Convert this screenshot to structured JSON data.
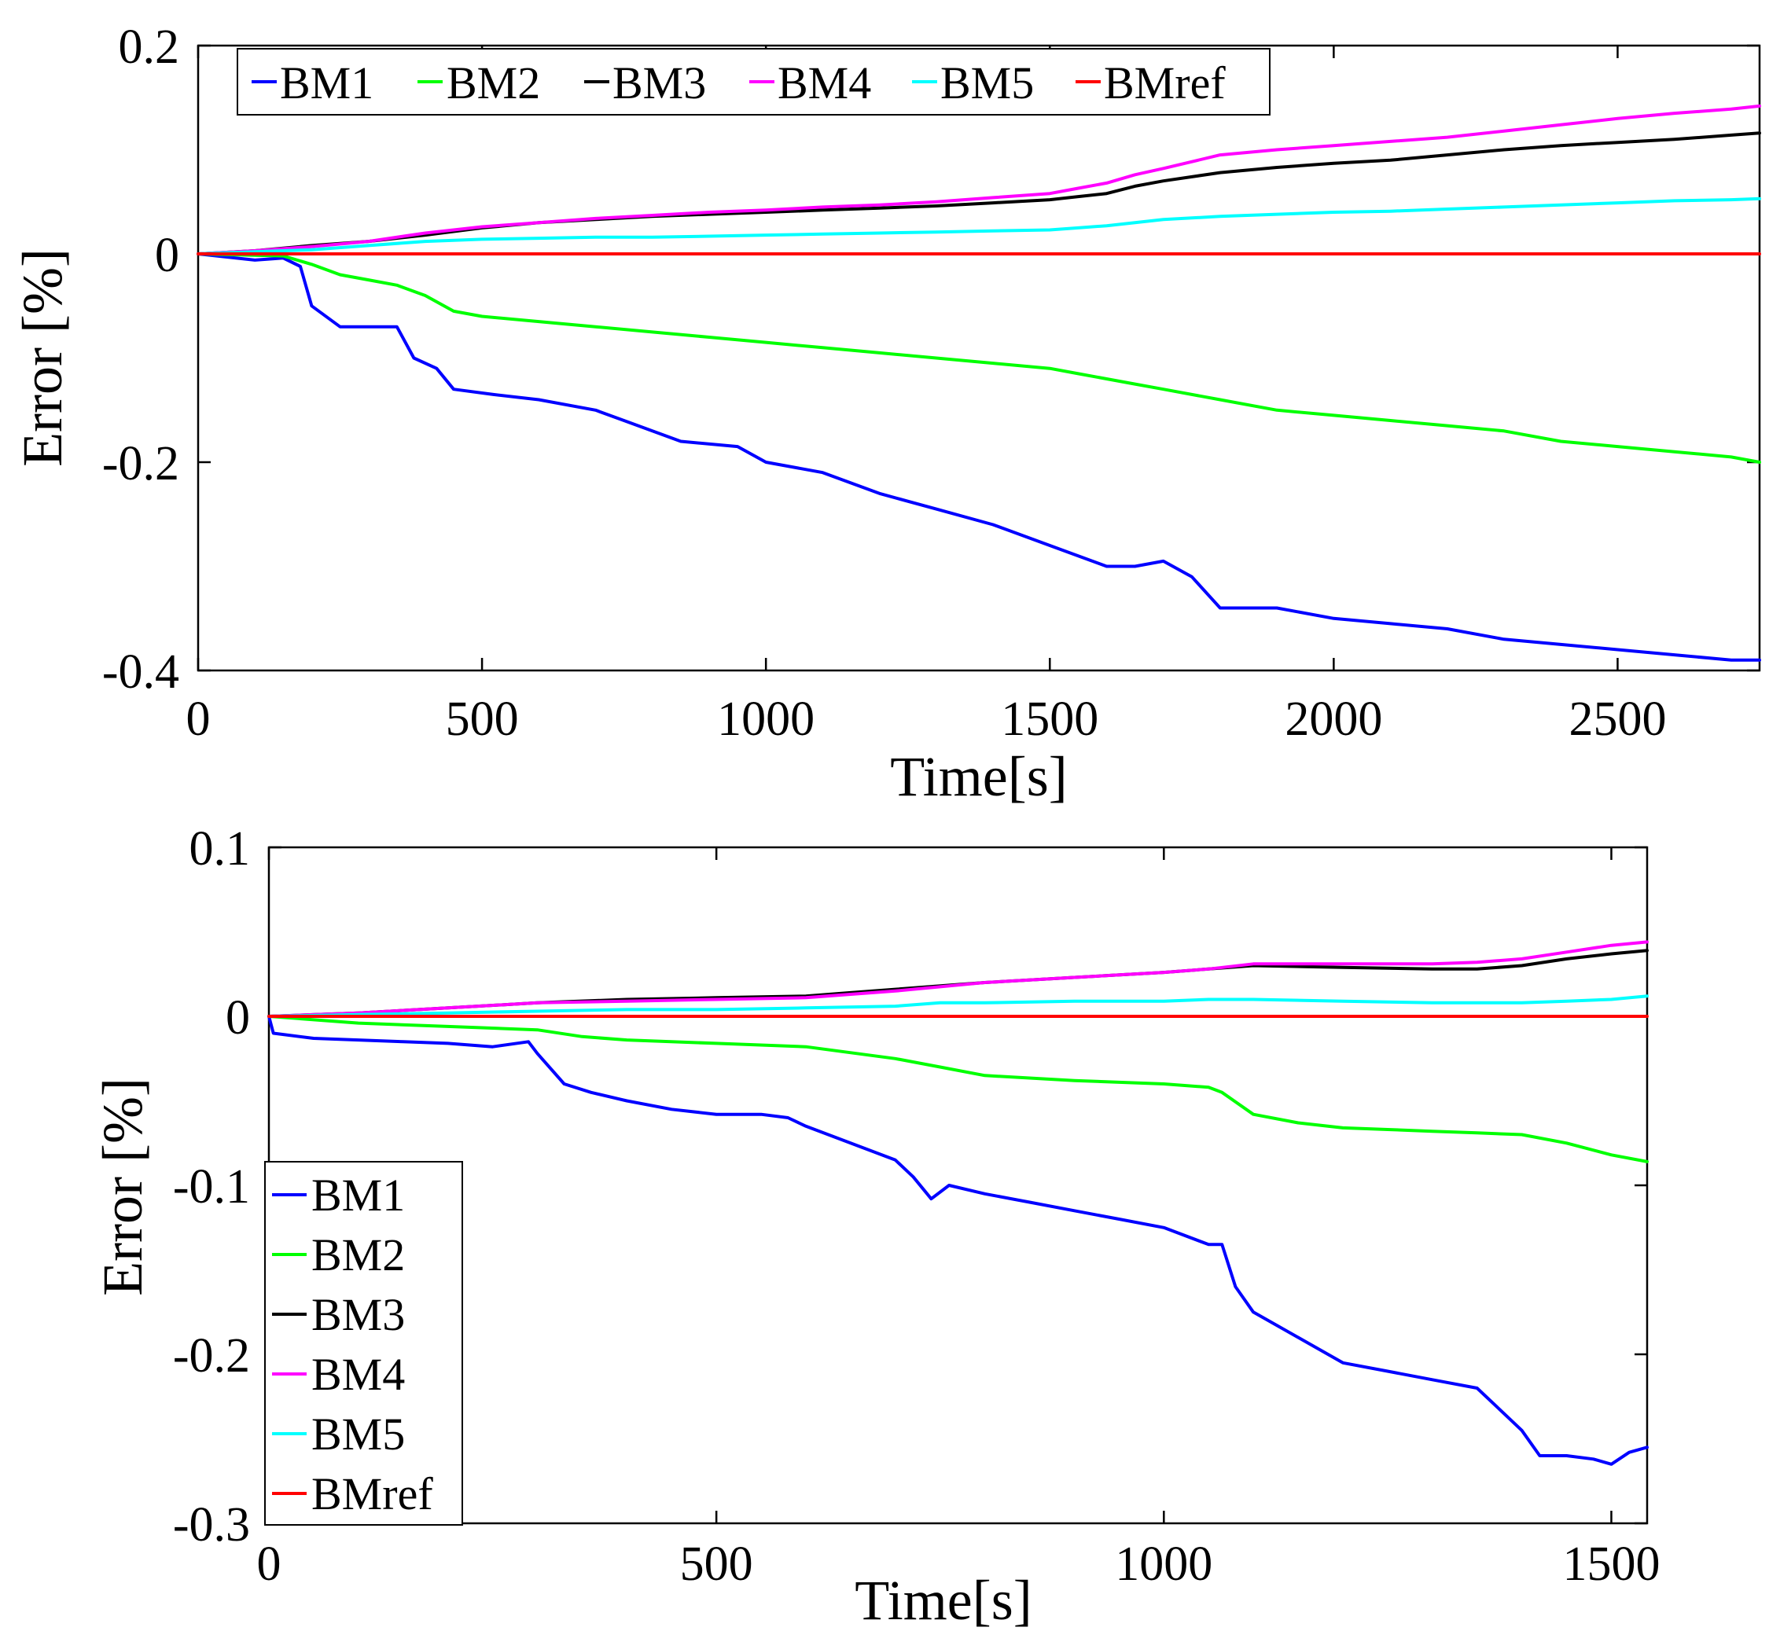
{
  "chart_data": [
    {
      "type": "line",
      "title": "",
      "xlabel": "Time[s]",
      "ylabel": "Error [%]",
      "xlim": [
        0,
        2750
      ],
      "ylim": [
        -0.4,
        0.2
      ],
      "xticks": [
        0,
        500,
        1000,
        1500,
        2000,
        2500
      ],
      "yticks": [
        0.2,
        0,
        -0.2,
        -0.4
      ],
      "xtick_labels": [
        "0",
        "500",
        "1000",
        "1500",
        "2000",
        "2500"
      ],
      "ytick_labels": [
        "0.2",
        "0",
        "-0.2",
        "-0.4"
      ],
      "legend_placement": "top-left, horizontal",
      "series": [
        {
          "name": "BM1",
          "color": "#0000ff",
          "x": [
            0,
            100,
            150,
            180,
            200,
            250,
            300,
            350,
            380,
            420,
            450,
            520,
            600,
            700,
            750,
            850,
            950,
            1000,
            1100,
            1200,
            1300,
            1400,
            1500,
            1550,
            1600,
            1650,
            1700,
            1750,
            1800,
            1900,
            2000,
            2100,
            2200,
            2300,
            2400,
            2500,
            2600,
            2700,
            2750
          ],
          "y": [
            0,
            -0.006,
            -0.004,
            -0.012,
            -0.05,
            -0.07,
            -0.07,
            -0.07,
            -0.1,
            -0.11,
            -0.13,
            -0.135,
            -0.14,
            -0.15,
            -0.16,
            -0.18,
            -0.185,
            -0.2,
            -0.21,
            -0.23,
            -0.245,
            -0.26,
            -0.28,
            -0.29,
            -0.3,
            -0.3,
            -0.295,
            -0.31,
            -0.34,
            -0.34,
            -0.35,
            -0.355,
            -0.36,
            -0.37,
            -0.375,
            -0.38,
            -0.385,
            -0.39,
            -0.39
          ]
        },
        {
          "name": "BM2",
          "color": "#00ff00",
          "x": [
            0,
            150,
            200,
            250,
            300,
            350,
            400,
            450,
            500,
            600,
            700,
            800,
            900,
            1000,
            1100,
            1200,
            1300,
            1400,
            1500,
            1550,
            1600,
            1650,
            1700,
            1800,
            1900,
            2000,
            2100,
            2200,
            2300,
            2400,
            2500,
            2600,
            2700,
            2750
          ],
          "y": [
            0,
            -0.002,
            -0.01,
            -0.02,
            -0.025,
            -0.03,
            -0.04,
            -0.055,
            -0.06,
            -0.065,
            -0.07,
            -0.075,
            -0.08,
            -0.085,
            -0.09,
            -0.095,
            -0.1,
            -0.105,
            -0.11,
            -0.115,
            -0.12,
            -0.125,
            -0.13,
            -0.14,
            -0.15,
            -0.155,
            -0.16,
            -0.165,
            -0.17,
            -0.18,
            -0.185,
            -0.19,
            -0.195,
            -0.2
          ]
        },
        {
          "name": "BM3",
          "color": "#000000",
          "x": [
            0,
            100,
            200,
            300,
            400,
            500,
            600,
            700,
            800,
            900,
            1000,
            1100,
            1200,
            1300,
            1400,
            1500,
            1550,
            1600,
            1650,
            1700,
            1800,
            1900,
            2000,
            2100,
            2200,
            2300,
            2400,
            2500,
            2600,
            2700,
            2750
          ],
          "y": [
            0,
            0.003,
            0.008,
            0.012,
            0.018,
            0.025,
            0.03,
            0.033,
            0.036,
            0.038,
            0.04,
            0.042,
            0.044,
            0.046,
            0.049,
            0.052,
            0.055,
            0.058,
            0.065,
            0.07,
            0.078,
            0.083,
            0.087,
            0.09,
            0.095,
            0.1,
            0.104,
            0.107,
            0.11,
            0.114,
            0.116
          ]
        },
        {
          "name": "BM4",
          "color": "#ff00ff",
          "x": [
            0,
            100,
            200,
            300,
            400,
            500,
            600,
            700,
            800,
            900,
            1000,
            1100,
            1200,
            1300,
            1400,
            1500,
            1550,
            1600,
            1650,
            1700,
            1800,
            1900,
            2000,
            2100,
            2200,
            2300,
            2400,
            2500,
            2600,
            2700,
            2750
          ],
          "y": [
            0,
            0.003,
            0.007,
            0.012,
            0.02,
            0.026,
            0.03,
            0.034,
            0.037,
            0.04,
            0.042,
            0.045,
            0.047,
            0.05,
            0.054,
            0.058,
            0.063,
            0.068,
            0.076,
            0.082,
            0.095,
            0.1,
            0.104,
            0.108,
            0.112,
            0.118,
            0.124,
            0.13,
            0.135,
            0.139,
            0.142
          ]
        },
        {
          "name": "BM5",
          "color": "#00ffff",
          "x": [
            0,
            100,
            200,
            300,
            400,
            500,
            600,
            700,
            800,
            900,
            1000,
            1100,
            1200,
            1300,
            1400,
            1500,
            1550,
            1600,
            1650,
            1700,
            1800,
            1900,
            2000,
            2100,
            2200,
            2300,
            2400,
            2500,
            2600,
            2700,
            2750
          ],
          "y": [
            0,
            0.002,
            0.004,
            0.008,
            0.012,
            0.014,
            0.015,
            0.016,
            0.016,
            0.017,
            0.018,
            0.019,
            0.02,
            0.021,
            0.022,
            0.023,
            0.025,
            0.027,
            0.03,
            0.033,
            0.036,
            0.038,
            0.04,
            0.041,
            0.043,
            0.045,
            0.047,
            0.049,
            0.051,
            0.052,
            0.053
          ]
        },
        {
          "name": "BMref",
          "color": "#ff0000",
          "x": [
            0,
            2750
          ],
          "y": [
            0,
            0
          ]
        }
      ]
    },
    {
      "type": "line",
      "title": "",
      "xlabel": "Time[s]",
      "ylabel": "Error [%]",
      "xlim": [
        0,
        1540
      ],
      "ylim": [
        -0.3,
        0.1
      ],
      "xticks": [
        0,
        500,
        1000,
        1500
      ],
      "yticks": [
        0.1,
        0,
        -0.1,
        -0.2,
        -0.3
      ],
      "xtick_labels": [
        "0",
        "500",
        "1000",
        "1500"
      ],
      "ytick_labels": [
        "0.1",
        "0",
        "-0.1",
        "-0.2",
        "-0.3"
      ],
      "legend_placement": "bottom-left, vertical",
      "series": [
        {
          "name": "BM1",
          "color": "#0000ff",
          "x": [
            0,
            5,
            50,
            100,
            150,
            200,
            250,
            290,
            300,
            330,
            360,
            400,
            450,
            500,
            550,
            580,
            600,
            650,
            700,
            720,
            740,
            760,
            800,
            850,
            900,
            950,
            1000,
            1050,
            1065,
            1080,
            1100,
            1150,
            1200,
            1250,
            1300,
            1350,
            1380,
            1400,
            1420,
            1450,
            1480,
            1500,
            1520,
            1540
          ],
          "y": [
            0,
            -0.01,
            -0.013,
            -0.014,
            -0.015,
            -0.016,
            -0.018,
            -0.015,
            -0.022,
            -0.04,
            -0.045,
            -0.05,
            -0.055,
            -0.058,
            -0.058,
            -0.06,
            -0.065,
            -0.075,
            -0.085,
            -0.095,
            -0.108,
            -0.1,
            -0.105,
            -0.11,
            -0.115,
            -0.12,
            -0.125,
            -0.135,
            -0.135,
            -0.16,
            -0.175,
            -0.19,
            -0.205,
            -0.21,
            -0.215,
            -0.22,
            -0.235,
            -0.245,
            -0.26,
            -0.26,
            -0.262,
            -0.265,
            -0.258,
            -0.255
          ]
        },
        {
          "name": "BM2",
          "color": "#00ff00",
          "x": [
            0,
            100,
            200,
            300,
            350,
            400,
            500,
            600,
            700,
            750,
            800,
            900,
            1000,
            1050,
            1065,
            1100,
            1150,
            1200,
            1250,
            1300,
            1350,
            1400,
            1450,
            1500,
            1540
          ],
          "y": [
            0,
            -0.004,
            -0.006,
            -0.008,
            -0.012,
            -0.014,
            -0.016,
            -0.018,
            -0.025,
            -0.03,
            -0.035,
            -0.038,
            -0.04,
            -0.042,
            -0.045,
            -0.058,
            -0.063,
            -0.066,
            -0.067,
            -0.068,
            -0.069,
            -0.07,
            -0.075,
            -0.082,
            -0.086
          ]
        },
        {
          "name": "BM3",
          "color": "#000000",
          "x": [
            0,
            100,
            200,
            300,
            400,
            500,
            600,
            650,
            700,
            800,
            900,
            1000,
            1050,
            1100,
            1200,
            1300,
            1350,
            1400,
            1450,
            1500,
            1540
          ],
          "y": [
            0,
            0.002,
            0.005,
            0.008,
            0.01,
            0.011,
            0.012,
            0.014,
            0.016,
            0.02,
            0.023,
            0.026,
            0.028,
            0.03,
            0.029,
            0.028,
            0.028,
            0.03,
            0.034,
            0.037,
            0.039
          ]
        },
        {
          "name": "BM4",
          "color": "#ff00ff",
          "x": [
            0,
            100,
            200,
            300,
            400,
            500,
            600,
            650,
            700,
            800,
            900,
            1000,
            1050,
            1100,
            1200,
            1300,
            1350,
            1400,
            1450,
            1500,
            1540
          ],
          "y": [
            0,
            0.002,
            0.005,
            0.008,
            0.009,
            0.01,
            0.011,
            0.013,
            0.015,
            0.02,
            0.023,
            0.026,
            0.028,
            0.031,
            0.031,
            0.031,
            0.032,
            0.034,
            0.038,
            0.042,
            0.044
          ]
        },
        {
          "name": "BM5",
          "color": "#00ffff",
          "x": [
            0,
            100,
            200,
            300,
            400,
            500,
            600,
            700,
            750,
            800,
            900,
            1000,
            1050,
            1100,
            1200,
            1300,
            1400,
            1450,
            1500,
            1540
          ],
          "y": [
            0,
            0.001,
            0.002,
            0.003,
            0.004,
            0.004,
            0.005,
            0.006,
            0.008,
            0.008,
            0.009,
            0.009,
            0.01,
            0.01,
            0.009,
            0.008,
            0.008,
            0.009,
            0.01,
            0.012
          ]
        },
        {
          "name": "BMref",
          "color": "#ff0000",
          "x": [
            0,
            1540
          ],
          "y": [
            0,
            0
          ]
        }
      ]
    }
  ]
}
